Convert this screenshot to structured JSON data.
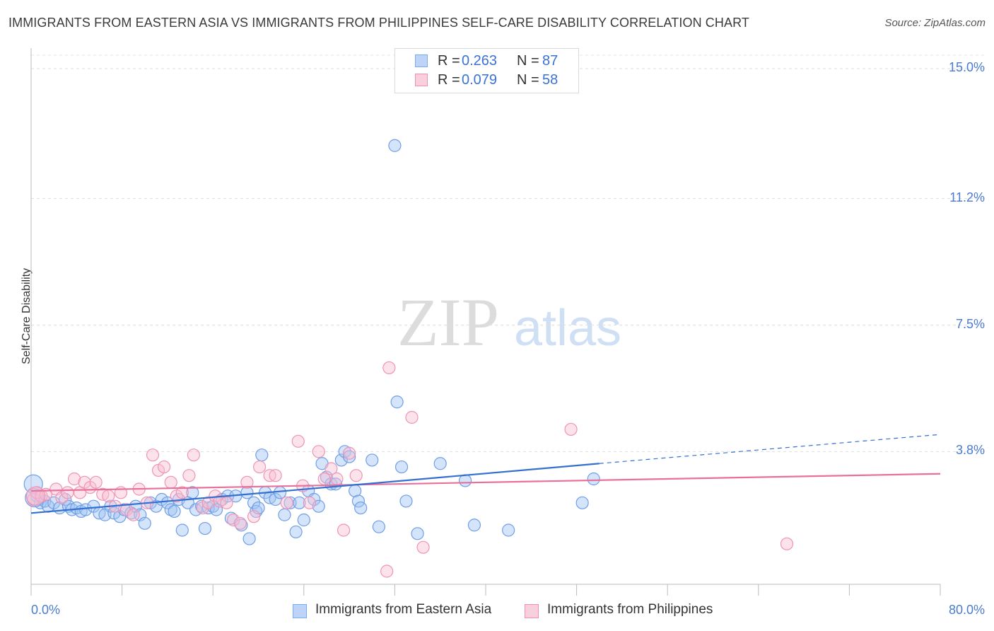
{
  "header": {
    "title": "IMMIGRANTS FROM EASTERN ASIA VS IMMIGRANTS FROM PHILIPPINES SELF-CARE DISABILITY CORRELATION CHART",
    "source": "Source: ZipAtlas.com"
  },
  "watermark": {
    "zip": "ZIP",
    "atlas": "atlas"
  },
  "legend": {
    "r_label": "R =",
    "n_label": "N =",
    "series": [
      {
        "name": "Immigrants from Eastern Asia",
        "r": "0.263",
        "n": "87",
        "color": "#7aaaf0",
        "fill": "#bdd4f8"
      },
      {
        "name": "Immigrants from Philippines",
        "r": "0.079",
        "n": "58",
        "color": "#f090b0",
        "fill": "#f9cfdd"
      }
    ]
  },
  "chart_data": {
    "type": "scatter",
    "title": "IMMIGRANTS FROM EASTERN ASIA VS IMMIGRANTS FROM PHILIPPINES SELF-CARE DISABILITY CORRELATION CHART",
    "xlabel": "",
    "ylabel": "Self-Care Disability",
    "xlim": [
      0,
      80
    ],
    "ylim": [
      0,
      15.5
    ],
    "y_ticks": [
      3.8,
      7.5,
      11.2,
      15.0
    ],
    "y_tick_labels": [
      "3.8%",
      "7.5%",
      "11.2%",
      "15.0%"
    ],
    "x_tick_labels": [
      "0.0%",
      "80.0%"
    ],
    "grid": true,
    "series": [
      {
        "name": "Immigrants from Eastern Asia",
        "color": "#3470d0",
        "trend": {
          "x": [
            0,
            50
          ],
          "y": [
            2.0,
            3.45
          ]
        },
        "trend_extension": {
          "x": [
            50,
            80
          ],
          "y": [
            3.45,
            4.3
          ]
        },
        "points": [
          [
            0.2,
            2.85
          ],
          [
            0.5,
            2.5
          ],
          [
            0.8,
            2.3
          ],
          [
            1.2,
            2.35
          ],
          [
            1.5,
            2.2
          ],
          [
            2.0,
            2.3
          ],
          [
            2.5,
            2.15
          ],
          [
            3.0,
            2.4
          ],
          [
            3.3,
            2.2
          ],
          [
            3.6,
            2.1
          ],
          [
            4.0,
            2.15
          ],
          [
            4.4,
            2.05
          ],
          [
            4.8,
            2.1
          ],
          [
            5.5,
            2.2
          ],
          [
            6.0,
            2.0
          ],
          [
            6.5,
            1.95
          ],
          [
            7.0,
            2.2
          ],
          [
            7.3,
            2.0
          ],
          [
            7.8,
            1.9
          ],
          [
            8.2,
            2.1
          ],
          [
            8.8,
            2.0
          ],
          [
            9.2,
            2.2
          ],
          [
            9.6,
            1.95
          ],
          [
            10.0,
            1.7
          ],
          [
            10.5,
            2.3
          ],
          [
            11.0,
            2.2
          ],
          [
            11.5,
            2.4
          ],
          [
            12.0,
            2.3
          ],
          [
            12.3,
            2.1
          ],
          [
            12.6,
            2.05
          ],
          [
            13.0,
            2.4
          ],
          [
            13.3,
            1.5
          ],
          [
            13.8,
            2.3
          ],
          [
            14.2,
            2.6
          ],
          [
            14.5,
            2.1
          ],
          [
            15.0,
            2.2
          ],
          [
            15.3,
            1.55
          ],
          [
            15.6,
            2.15
          ],
          [
            16.0,
            2.2
          ],
          [
            16.3,
            2.1
          ],
          [
            16.8,
            2.4
          ],
          [
            17.3,
            2.5
          ],
          [
            17.6,
            1.85
          ],
          [
            18.0,
            2.5
          ],
          [
            18.5,
            1.65
          ],
          [
            19.0,
            2.6
          ],
          [
            19.2,
            1.25
          ],
          [
            19.6,
            2.3
          ],
          [
            19.8,
            2.05
          ],
          [
            20.0,
            2.15
          ],
          [
            20.3,
            3.7
          ],
          [
            20.6,
            2.6
          ],
          [
            21.0,
            2.45
          ],
          [
            21.5,
            2.4
          ],
          [
            21.9,
            2.6
          ],
          [
            22.3,
            1.95
          ],
          [
            22.8,
            2.3
          ],
          [
            23.3,
            1.45
          ],
          [
            23.6,
            2.3
          ],
          [
            24.0,
            1.8
          ],
          [
            24.4,
            2.65
          ],
          [
            24.9,
            2.4
          ],
          [
            25.3,
            2.2
          ],
          [
            25.6,
            3.45
          ],
          [
            26.0,
            3.05
          ],
          [
            26.4,
            2.85
          ],
          [
            26.8,
            2.85
          ],
          [
            27.3,
            3.55
          ],
          [
            27.6,
            3.8
          ],
          [
            28.0,
            3.65
          ],
          [
            28.5,
            2.65
          ],
          [
            28.8,
            2.35
          ],
          [
            29.0,
            2.15
          ],
          [
            30.0,
            3.55
          ],
          [
            30.6,
            1.6
          ],
          [
            32.0,
            12.75
          ],
          [
            32.2,
            5.25
          ],
          [
            32.6,
            3.35
          ],
          [
            33.0,
            2.35
          ],
          [
            34.0,
            1.4
          ],
          [
            36.0,
            3.45
          ],
          [
            38.2,
            2.95
          ],
          [
            39.0,
            1.65
          ],
          [
            42.0,
            1.5
          ],
          [
            48.5,
            2.3
          ],
          [
            49.5,
            3.0
          ],
          [
            0.3,
            2.45
          ]
        ]
      },
      {
        "name": "Immigrants from Philippines",
        "color": "#e8709a",
        "trend": {
          "x": [
            0,
            80
          ],
          "y": [
            2.65,
            3.15
          ]
        },
        "points": [
          [
            0.2,
            2.4
          ],
          [
            0.5,
            2.6
          ],
          [
            0.9,
            2.5
          ],
          [
            1.3,
            2.55
          ],
          [
            2.2,
            2.7
          ],
          [
            2.7,
            2.45
          ],
          [
            3.2,
            2.6
          ],
          [
            3.8,
            3.0
          ],
          [
            4.3,
            2.6
          ],
          [
            4.7,
            2.9
          ],
          [
            5.2,
            2.75
          ],
          [
            5.7,
            2.9
          ],
          [
            6.3,
            2.55
          ],
          [
            6.8,
            2.5
          ],
          [
            7.4,
            2.2
          ],
          [
            7.9,
            2.6
          ],
          [
            8.4,
            2.1
          ],
          [
            9.0,
            1.95
          ],
          [
            9.5,
            2.7
          ],
          [
            10.2,
            2.3
          ],
          [
            10.7,
            3.7
          ],
          [
            11.2,
            3.25
          ],
          [
            11.7,
            3.35
          ],
          [
            12.3,
            2.9
          ],
          [
            12.8,
            2.5
          ],
          [
            13.3,
            2.6
          ],
          [
            13.9,
            3.1
          ],
          [
            14.3,
            3.7
          ],
          [
            15.1,
            2.15
          ],
          [
            15.6,
            2.3
          ],
          [
            16.2,
            2.5
          ],
          [
            16.6,
            2.35
          ],
          [
            17.2,
            2.3
          ],
          [
            17.8,
            1.8
          ],
          [
            18.4,
            1.7
          ],
          [
            19.0,
            2.9
          ],
          [
            19.6,
            1.9
          ],
          [
            20.1,
            3.35
          ],
          [
            21.0,
            3.1
          ],
          [
            21.5,
            3.1
          ],
          [
            22.5,
            2.3
          ],
          [
            23.5,
            4.1
          ],
          [
            23.9,
            2.8
          ],
          [
            24.5,
            2.3
          ],
          [
            25.3,
            3.8
          ],
          [
            25.8,
            3.0
          ],
          [
            26.4,
            3.3
          ],
          [
            26.9,
            3.0
          ],
          [
            27.5,
            1.5
          ],
          [
            28.0,
            3.75
          ],
          [
            28.6,
            3.1
          ],
          [
            31.5,
            6.25
          ],
          [
            31.3,
            0.3
          ],
          [
            33.5,
            4.8
          ],
          [
            34.5,
            1.0
          ],
          [
            47.5,
            4.45
          ],
          [
            66.5,
            1.1
          ],
          [
            0.4,
            2.5
          ]
        ]
      }
    ]
  }
}
